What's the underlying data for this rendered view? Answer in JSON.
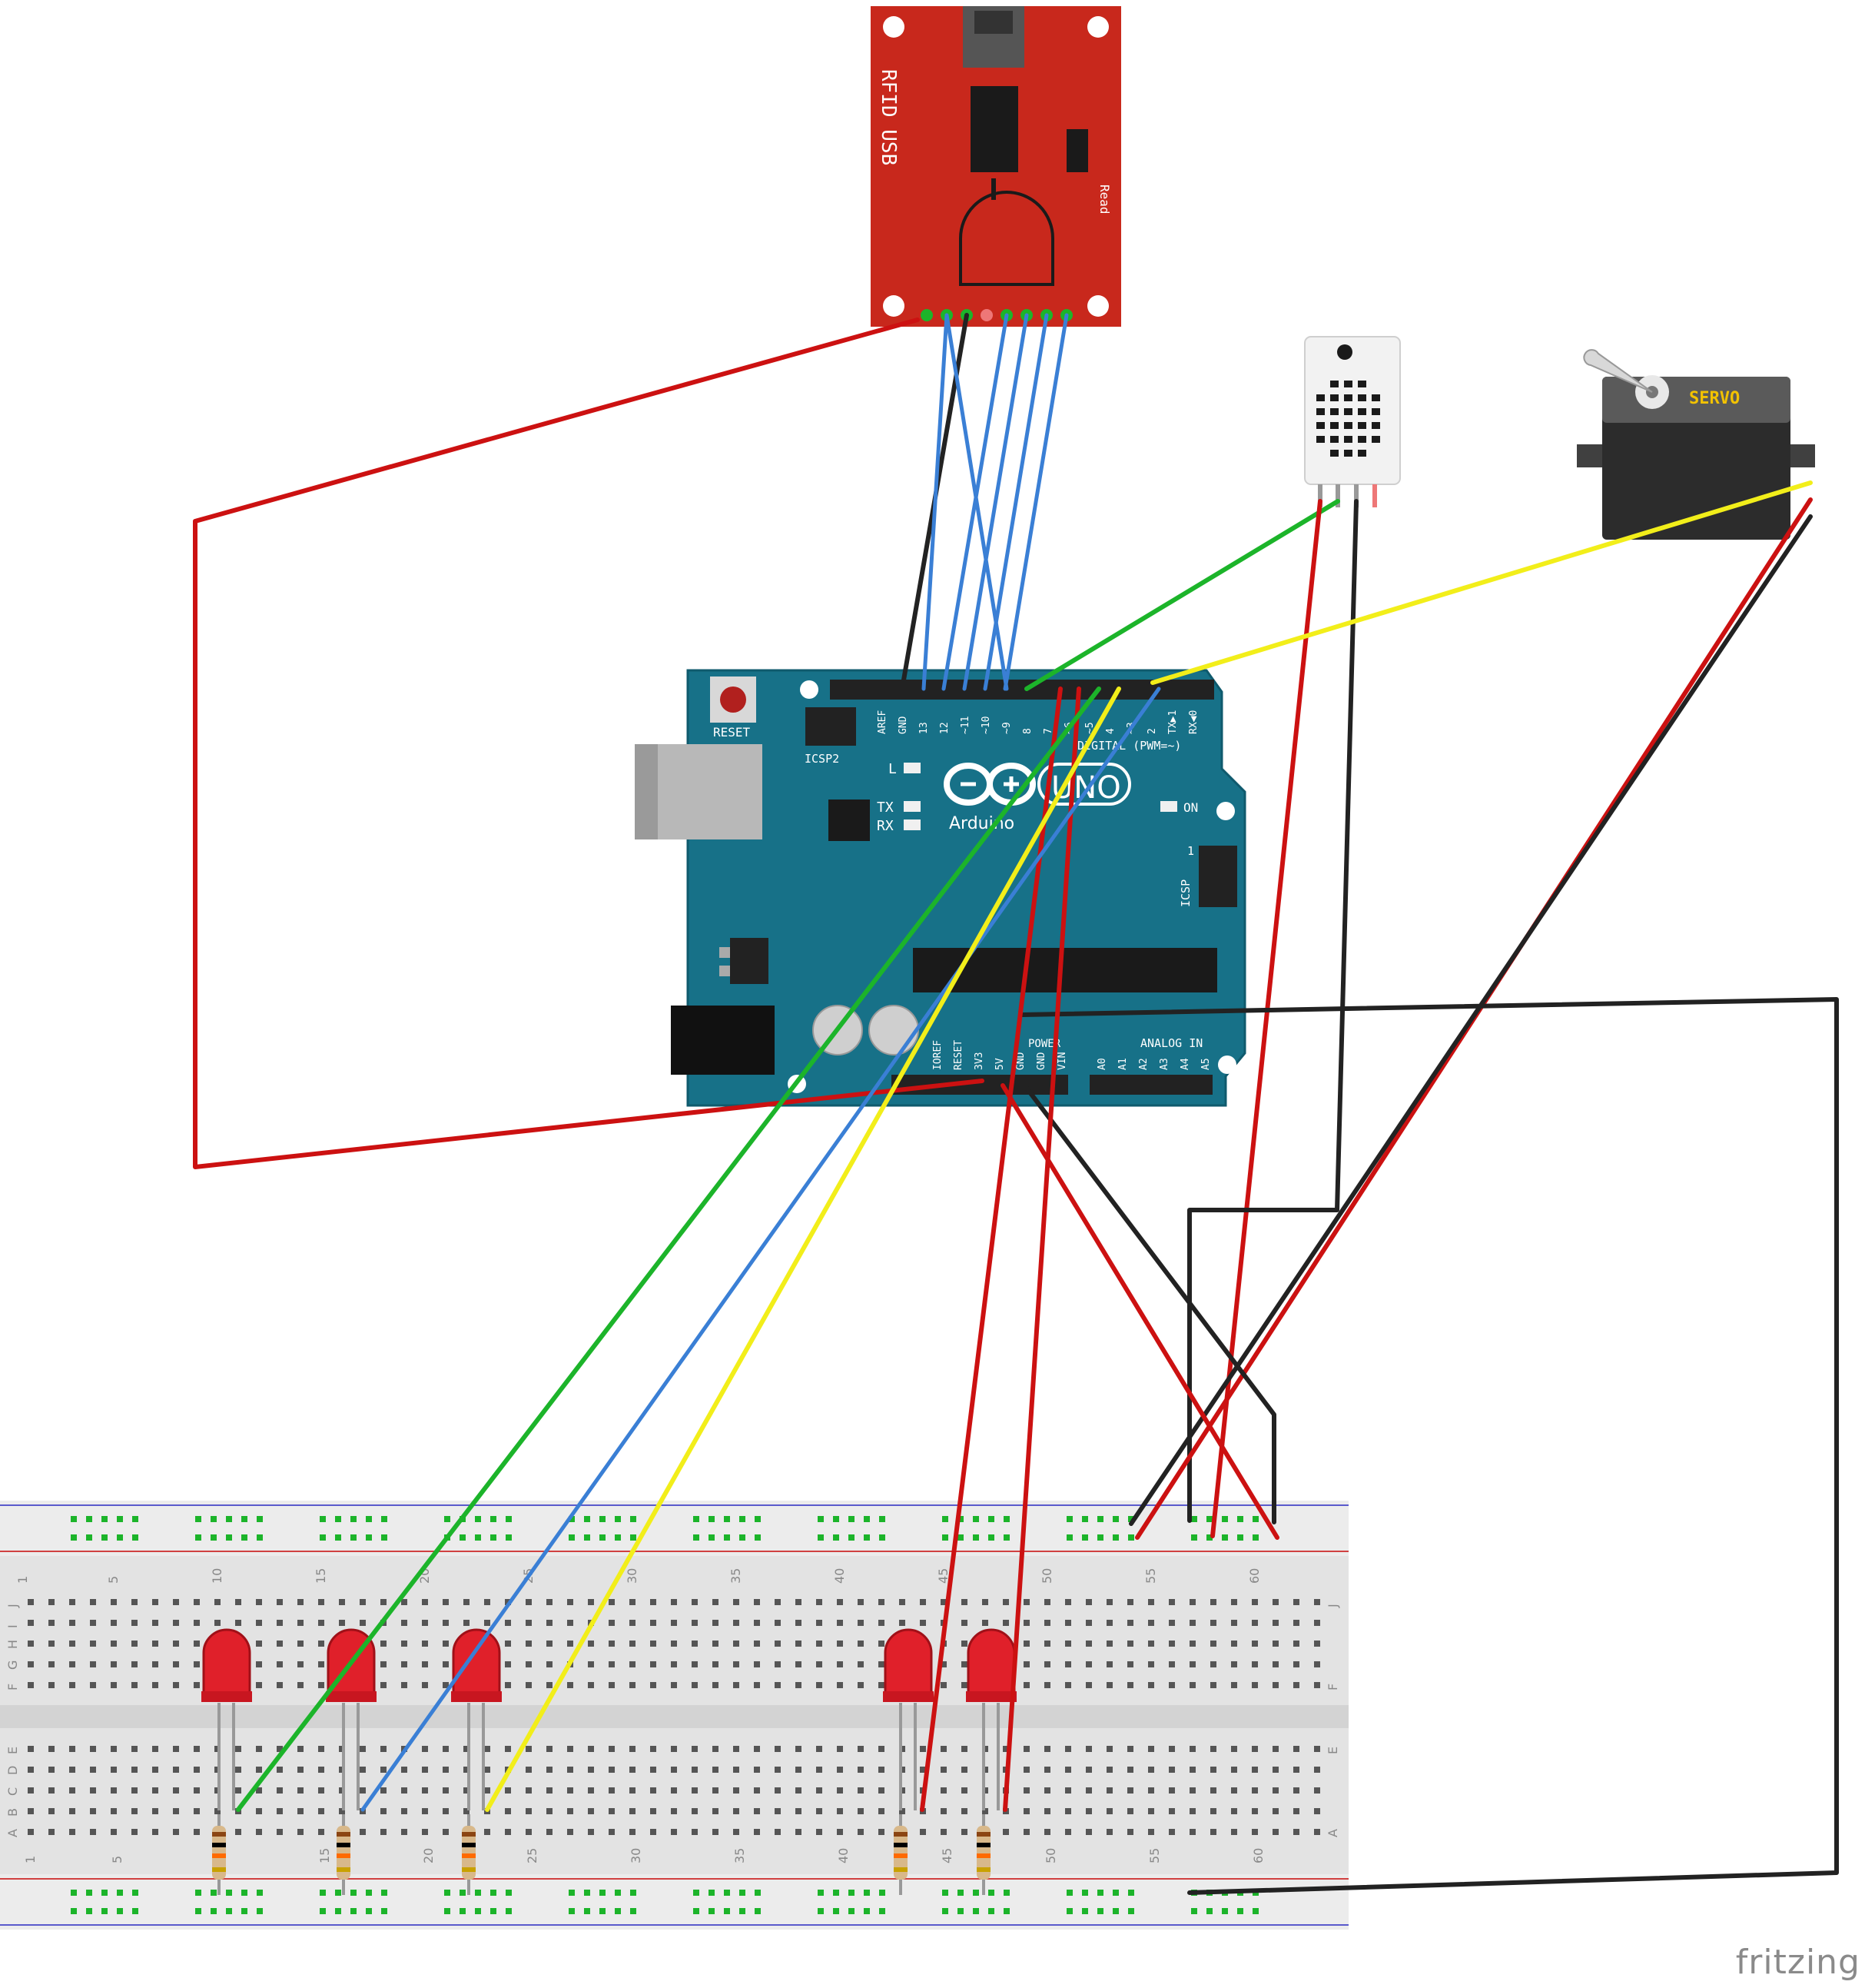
{
  "rfid": {
    "title": "RFID USB",
    "read_label": "Read"
  },
  "servo": {
    "label": "SERVO"
  },
  "arduino": {
    "reset_label": "RESET",
    "icsp2_label": "ICSP2",
    "icsp_label": "ICSP",
    "icsp_pin1": "1",
    "brand": "Arduino",
    "model": "UNO",
    "led_l": "L",
    "led_tx": "TX",
    "led_rx": "RX",
    "led_on": "ON",
    "digital_label": "DIGITAL (PWM=~)",
    "analog_label": "ANALOG IN",
    "power_label": "POWER",
    "digital_pins": [
      "AREF",
      "GND",
      "13",
      "12",
      "~11",
      "~10",
      "~9",
      "8",
      "7",
      "~6",
      "~5",
      "4",
      "~3",
      "2",
      "TX▶1",
      "RX◀0"
    ],
    "power_pins": [
      "IOREF",
      "RESET",
      "3V3",
      "5V",
      "GND",
      "GND",
      "VIN"
    ],
    "analog_pins": [
      "A0",
      "A1",
      "A2",
      "A3",
      "A4",
      "A5"
    ]
  },
  "breadboard": {
    "column_numbers": [
      "1",
      "5",
      "10",
      "15",
      "20",
      "25",
      "30",
      "35",
      "40",
      "45",
      "50",
      "55",
      "60"
    ],
    "top_rows": [
      "J",
      "I",
      "H",
      "G",
      "F"
    ],
    "bottom_rows": [
      "E",
      "D",
      "C",
      "B",
      "A"
    ]
  },
  "watermark": "fritzing",
  "colors": {
    "rfid_board": "#c8281c",
    "arduino_board": "#177188",
    "wire_red": "#cc1111",
    "wire_black": "#222222",
    "wire_blue": "#3a7fd5",
    "wire_green": "#1cb42a",
    "wire_yellow": "#f2ee1a",
    "breadboard": "#e6e6e6"
  }
}
